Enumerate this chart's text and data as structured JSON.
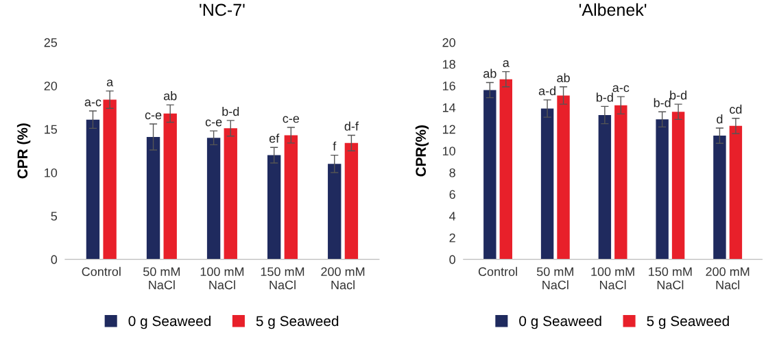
{
  "chart_data": [
    {
      "type": "bar",
      "title": "'NC-7'",
      "ylabel": "CPR (%)",
      "categories": [
        "Control",
        "50 mM\nNaCl",
        "100 mM\nNaCl",
        "150 mM\nNaCl",
        "200 mM\nNacl"
      ],
      "ylim": [
        0,
        25
      ],
      "yticks": [
        0,
        5,
        10,
        15,
        20,
        25
      ],
      "grid": false,
      "legend": "bottom",
      "series": [
        {
          "name": "0 g Seaweed",
          "color": "#1f2a5e",
          "values": [
            16.1,
            14.1,
            14.0,
            12.0,
            11.0
          ],
          "errors": [
            1.0,
            1.5,
            0.8,
            0.9,
            1.0
          ],
          "value_labels": [
            "a-c",
            "c-e",
            "c-e",
            "ef",
            "f"
          ]
        },
        {
          "name": "5 g Seaweed",
          "color": "#e8202a",
          "values": [
            18.4,
            16.8,
            15.1,
            14.3,
            13.4
          ],
          "errors": [
            1.0,
            1.0,
            0.9,
            0.9,
            0.9
          ],
          "value_labels": [
            "a",
            "ab",
            "b-d",
            "c-e",
            "d-f"
          ]
        }
      ]
    },
    {
      "type": "bar",
      "title": "'Albenek'",
      "ylabel": "CPR(%)",
      "categories": [
        "Control",
        "50 mM\nNaCl",
        "100 mM\nNaCl",
        "150 mM\nNaCl",
        "200 mM\nNacl"
      ],
      "ylim": [
        0,
        20
      ],
      "yticks": [
        0,
        2,
        4,
        6,
        8,
        10,
        12,
        14,
        16,
        18,
        20
      ],
      "grid": false,
      "legend": "bottom",
      "series": [
        {
          "name": "0 g Seaweed",
          "color": "#1f2a5e",
          "values": [
            15.6,
            13.9,
            13.3,
            12.9,
            11.4
          ],
          "errors": [
            0.7,
            0.8,
            0.8,
            0.7,
            0.7
          ],
          "value_labels": [
            "ab",
            "a-d",
            "b-d",
            "b-d",
            "d"
          ]
        },
        {
          "name": "5 g Seaweed",
          "color": "#e8202a",
          "values": [
            16.6,
            15.1,
            14.2,
            13.6,
            12.3
          ],
          "errors": [
            0.7,
            0.8,
            0.8,
            0.7,
            0.7
          ],
          "value_labels": [
            "a",
            "ab",
            "a-c",
            "b-d",
            "cd"
          ]
        }
      ]
    }
  ]
}
